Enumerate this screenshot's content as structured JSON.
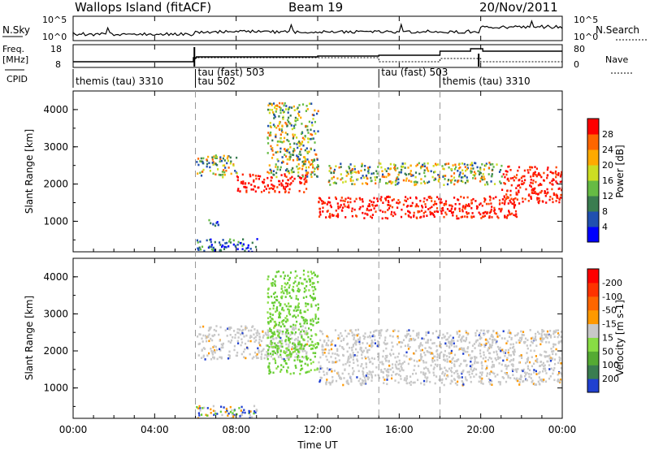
{
  "header": {
    "station": "Wallops Island (fitACF)",
    "beam": "Beam 19",
    "date": "20/Nov/2011"
  },
  "top_panels": {
    "nsky_label": "N.Sky",
    "nsky_ticks": [
      "10^5",
      "10^0"
    ],
    "nsearch_label": "N.Search",
    "nsearch_ticks": [
      "10^5",
      "10^0"
    ],
    "freq_label": "Freq.",
    "freq_unit": "[MHz]",
    "freq_ticks": [
      "18",
      "8"
    ],
    "nave_label": "Nave",
    "nave_ticks": [
      "80",
      "0"
    ],
    "cpid_label": "CPID"
  },
  "cpid_segments": [
    {
      "label": "themis (tau) 3310",
      "start_h": 0,
      "end_h": 6
    },
    {
      "label": "tau (fast) 503",
      "start_h": 6,
      "end_h": 15
    },
    {
      "label": "tau 502",
      "start_h": 6,
      "end_h": 6.05
    },
    {
      "label": "tau (fast) 503",
      "start_h": 15,
      "end_h": 18
    },
    {
      "label": "themis (tau) 3310",
      "start_h": 18,
      "end_h": 24
    }
  ],
  "chart_data": [
    {
      "type": "heatmap",
      "name": "power",
      "ylabel": "Slant Range [km]",
      "xlim_hours": [
        0,
        24
      ],
      "ylim": [
        180,
        4500
      ],
      "yticks": [
        1000,
        2000,
        3000,
        4000
      ],
      "colorbar": {
        "label": "Power [dB]",
        "ticks": [
          "4",
          "8",
          "12",
          "16",
          "20",
          "24",
          "28"
        ],
        "colors": [
          "#0000ff",
          "#2050b0",
          "#3a7d50",
          "#66bb44",
          "#ccdd22",
          "#ffaa00",
          "#ff6600",
          "#ff0000"
        ]
      },
      "echo_regions": [
        {
          "start_h": 6.0,
          "end_h": 8.0,
          "range_km": [
            2200,
            2800
          ],
          "level": "medium"
        },
        {
          "start_h": 8.0,
          "end_h": 11.5,
          "range_km": [
            1800,
            2300
          ],
          "level": "high"
        },
        {
          "start_h": 9.5,
          "end_h": 12.0,
          "range_km": [
            2200,
            4200
          ],
          "level": "medium"
        },
        {
          "start_h": 12.0,
          "end_h": 21.8,
          "range_km": [
            1100,
            1700
          ],
          "level": "high"
        },
        {
          "start_h": 12.5,
          "end_h": 21.0,
          "range_km": [
            2000,
            2600
          ],
          "level": "medium"
        },
        {
          "start_h": 21.0,
          "end_h": 24.0,
          "range_km": [
            1500,
            2500
          ],
          "level": "high"
        },
        {
          "start_h": 6.5,
          "end_h": 7.2,
          "range_km": [
            900,
            1100
          ],
          "level": "low"
        },
        {
          "start_h": 6.0,
          "end_h": 9.0,
          "range_km": [
            200,
            550
          ],
          "level": "low"
        }
      ]
    },
    {
      "type": "heatmap",
      "name": "velocity",
      "ylabel": "Slant Range [km]",
      "xlabel": "Time UT",
      "xlim_hours": [
        0,
        24
      ],
      "xticks": [
        "00:00",
        "04:00",
        "08:00",
        "12:00",
        "16:00",
        "20:00",
        "00:00"
      ],
      "ylim": [
        180,
        4500
      ],
      "yticks": [
        1000,
        2000,
        3000,
        4000
      ],
      "colorbar": {
        "label": "Velocity [m s-1]",
        "ticks": [
          "200",
          "100",
          "50",
          "15",
          "-15",
          "-50",
          "-100",
          "-200"
        ],
        "colors": [
          "#2040d0",
          "#3a7d50",
          "#55aa33",
          "#88dd44",
          "#c8c8c8",
          "#ff9900",
          "#ff6600",
          "#ff3300",
          "#ff0000"
        ]
      },
      "echo_regions": [
        {
          "start_h": 6.0,
          "end_h": 11.5,
          "range_km": [
            1800,
            2700
          ],
          "level": "neutral"
        },
        {
          "start_h": 9.5,
          "end_h": 12.0,
          "range_km": [
            1400,
            4200
          ],
          "level": "positive"
        },
        {
          "start_h": 12.0,
          "end_h": 24.0,
          "range_km": [
            1100,
            2600
          ],
          "level": "neutral"
        },
        {
          "start_h": 6.0,
          "end_h": 9.0,
          "range_km": [
            200,
            550
          ],
          "level": "mixed"
        }
      ]
    }
  ]
}
